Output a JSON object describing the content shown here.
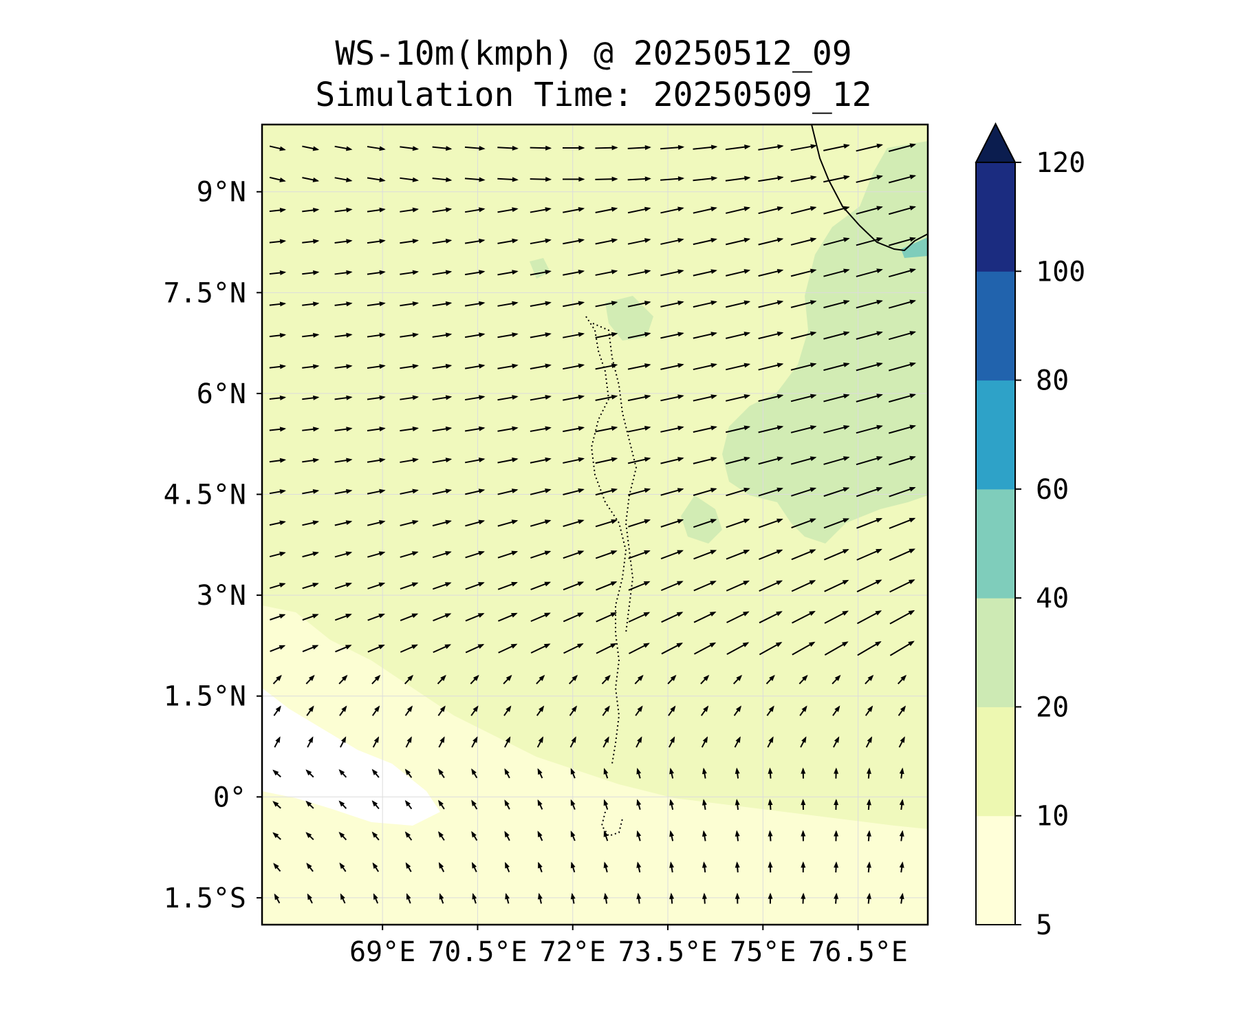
{
  "title": "WS-10m(kmph) @ 20250512_09",
  "subtitle": "Simulation Time: 20250509_12",
  "map": {
    "lat_range": [
      -1.9,
      10.0
    ],
    "lon_range": [
      67.1,
      77.6
    ],
    "lat_ticks": [
      {
        "value": 9.0,
        "label": "9°N"
      },
      {
        "value": 7.5,
        "label": "7.5°N"
      },
      {
        "value": 6.0,
        "label": "6°N"
      },
      {
        "value": 4.5,
        "label": "4.5°N"
      },
      {
        "value": 3.0,
        "label": "3°N"
      },
      {
        "value": 1.5,
        "label": "1.5°N"
      },
      {
        "value": 0.0,
        "label": "0°"
      },
      {
        "value": -1.5,
        "label": "1.5°S"
      }
    ],
    "lon_ticks": [
      {
        "value": 69.0,
        "label": "69°E"
      },
      {
        "value": 70.5,
        "label": "70.5°E"
      },
      {
        "value": 72.0,
        "label": "72°E"
      },
      {
        "value": 73.5,
        "label": "73.5°E"
      },
      {
        "value": 75.0,
        "label": "75°E"
      },
      {
        "value": 76.5,
        "label": "76.5°E"
      }
    ],
    "grid": true,
    "wind_vectors": true
  },
  "colorbar": {
    "levels": [
      "5",
      "10",
      "20",
      "40",
      "60",
      "80",
      "100",
      "120"
    ],
    "colors": [
      "#ffffd9",
      "#edf8b1",
      "#cdeab4",
      "#7fcdbb",
      "#2ea2c8",
      "#2163ad",
      "#1b2c80"
    ],
    "extend_color": "#0b1d4f",
    "extend": "max"
  }
}
